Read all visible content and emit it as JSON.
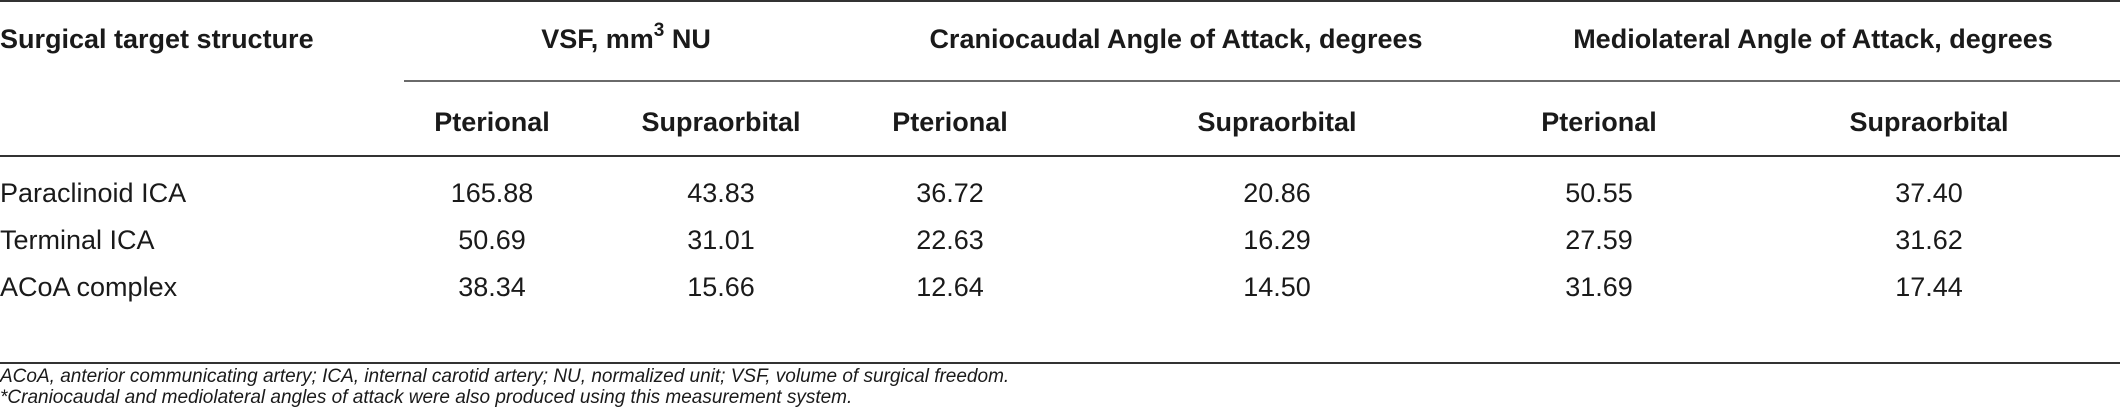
{
  "table": {
    "headers": {
      "row_header": "Surgical target structure",
      "groups": [
        {
          "label": "VSF, mm",
          "sup": "3",
          "suffix": " NU"
        },
        {
          "label": "Craniocaudal Angle of Attack, degrees"
        },
        {
          "label": "Mediolateral Angle of Attack, degrees"
        }
      ],
      "subheaders": [
        "Pterional",
        "Supraorbital",
        "Pterional",
        "Supraorbital",
        "Pterional",
        "Supraorbital"
      ]
    },
    "rows": [
      {
        "label": "Paraclinoid ICA",
        "values": [
          "165.88",
          "43.83",
          "36.72",
          "20.86",
          "50.55",
          "37.40"
        ]
      },
      {
        "label": "Terminal ICA",
        "values": [
          "50.69",
          "31.01",
          "22.63",
          "16.29",
          "27.59",
          "31.62"
        ]
      },
      {
        "label": "ACoA complex",
        "values": [
          "38.34",
          "15.66",
          "12.64",
          "14.50",
          "31.69",
          "17.44"
        ]
      }
    ]
  },
  "footnotes": [
    "ACoA, anterior communicating artery; ICA, internal carotid artery; NU, normalized unit; VSF, volume of surgical freedom.",
    "*Craniocaudal and mediolateral angles of attack were also produced using this measurement system."
  ]
}
